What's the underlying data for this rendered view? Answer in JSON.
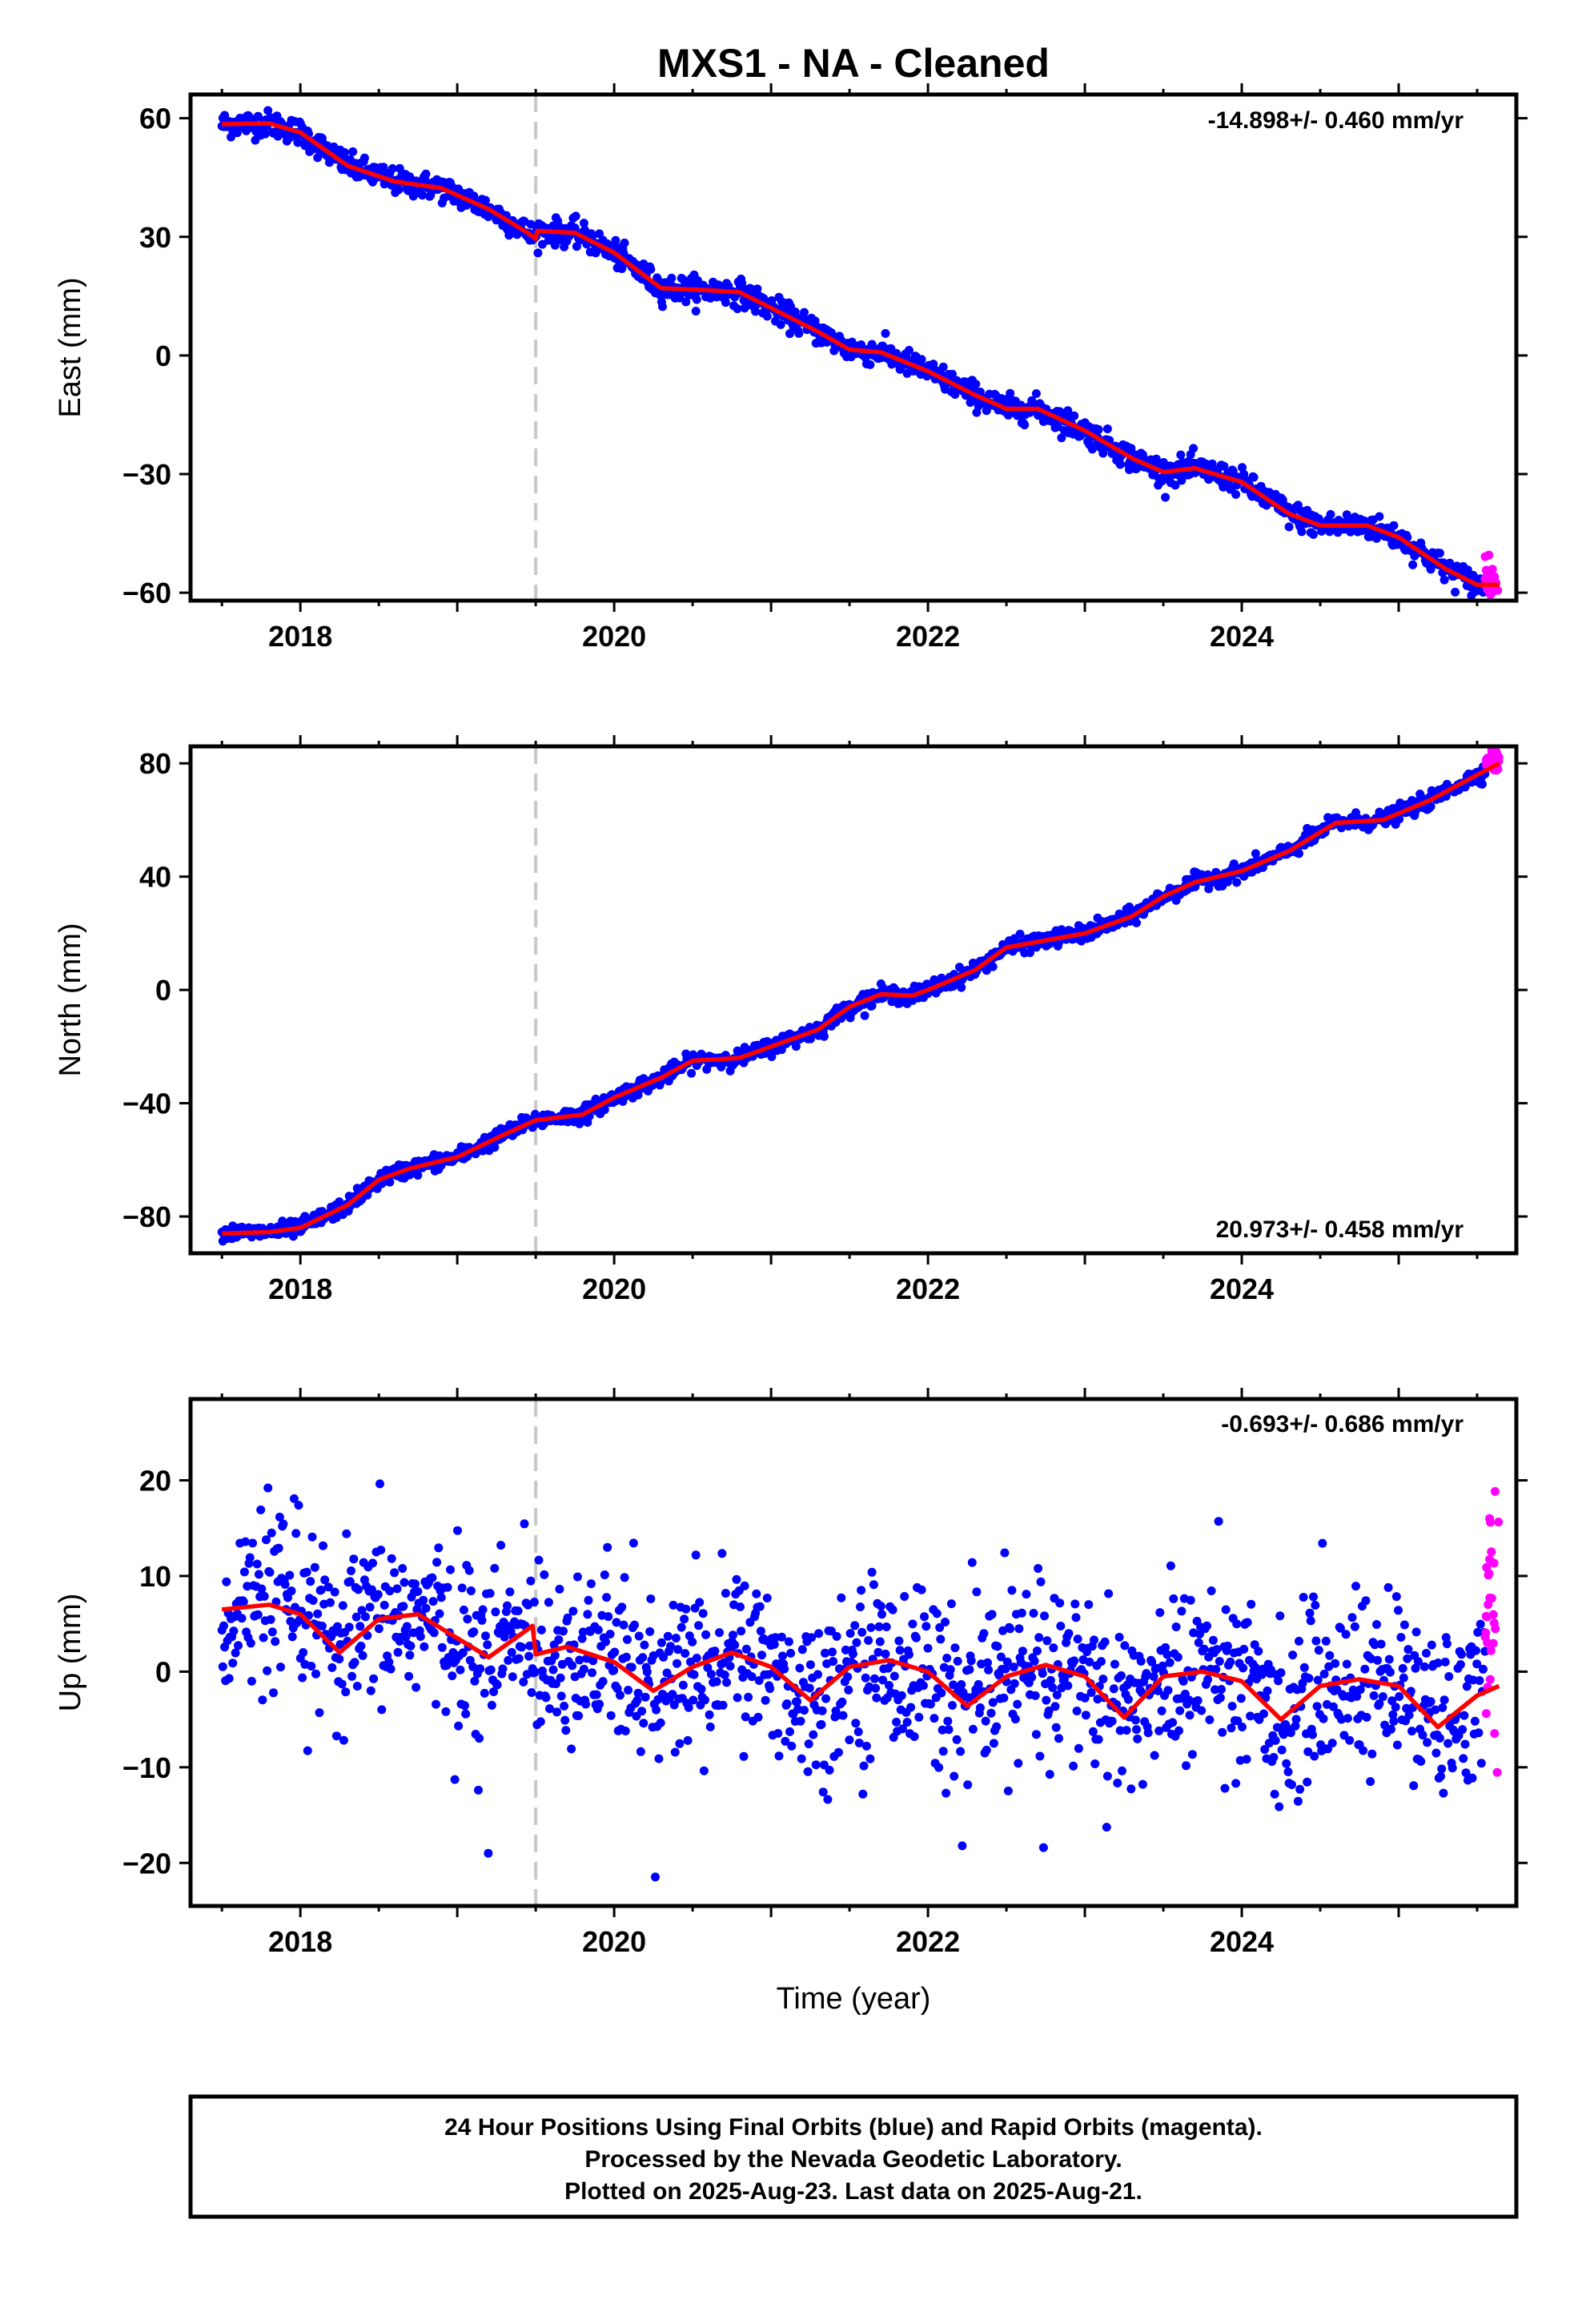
{
  "title": "MXS1  - NA - Cleaned",
  "xlabel": "Time (year)",
  "footer": {
    "line1": "24 Hour Positions Using Final Orbits (blue) and Rapid Orbits (magenta).",
    "line2": "Processed by the Nevada Geodetic Laboratory.",
    "line3": "Plotted on 2025-Aug-23. Last data on 2025-Aug-21."
  },
  "colors": {
    "final": "#0000ff",
    "rapid": "#ff00ff",
    "model": "#ff0000",
    "event_line": "#c8c8c8"
  },
  "chart_data": [
    {
      "type": "scatter",
      "component": "east",
      "ylabel": "East (mm)",
      "rate": "-14.898+/- 0.460 mm/yr",
      "xlim": [
        2017.3,
        2025.75
      ],
      "ylim": [
        -62,
        66
      ],
      "xticks": [
        2018,
        2020,
        2022,
        2024
      ],
      "yticks": [
        -60,
        -30,
        0,
        30,
        60
      ],
      "event_line_x": 2019.5,
      "data_start": 2017.5,
      "final_end": 2025.55,
      "rapid_range": [
        2025.55,
        2025.64
      ],
      "noise_mm": 1.6,
      "model": [
        [
          2017.5,
          58.5
        ],
        [
          2017.8,
          58.7
        ],
        [
          2018.0,
          56.4
        ],
        [
          2018.3,
          48
        ],
        [
          2018.6,
          44
        ],
        [
          2018.9,
          42.3
        ],
        [
          2019.2,
          37
        ],
        [
          2019.45,
          31
        ],
        [
          2019.5,
          29.5
        ],
        [
          2019.51,
          31.5
        ],
        [
          2019.75,
          31
        ],
        [
          2020.0,
          26
        ],
        [
          2020.3,
          17
        ],
        [
          2020.6,
          16.5
        ],
        [
          2020.8,
          16
        ],
        [
          2021.0,
          12
        ],
        [
          2021.3,
          6
        ],
        [
          2021.5,
          1.5
        ],
        [
          2021.7,
          0.8
        ],
        [
          2022.0,
          -4
        ],
        [
          2022.3,
          -10
        ],
        [
          2022.5,
          -13.5
        ],
        [
          2022.7,
          -13.5
        ],
        [
          2023.0,
          -19
        ],
        [
          2023.3,
          -26
        ],
        [
          2023.5,
          -29.5
        ],
        [
          2023.7,
          -28.5
        ],
        [
          2024.0,
          -32
        ],
        [
          2024.3,
          -40
        ],
        [
          2024.5,
          -43
        ],
        [
          2024.8,
          -43
        ],
        [
          2025.0,
          -46
        ],
        [
          2025.3,
          -54
        ],
        [
          2025.5,
          -58
        ],
        [
          2025.64,
          -58
        ]
      ]
    },
    {
      "type": "scatter",
      "component": "north",
      "ylabel": "North (mm)",
      "rate": "20.973+/- 0.458 mm/yr",
      "xlim": [
        2017.3,
        2025.75
      ],
      "ylim": [
        -93,
        86
      ],
      "xticks": [
        2018,
        2020,
        2022,
        2024
      ],
      "yticks": [
        -80,
        -40,
        0,
        40,
        80
      ],
      "event_line_x": 2019.5,
      "data_start": 2017.5,
      "final_end": 2025.55,
      "rapid_range": [
        2025.55,
        2025.64
      ],
      "noise_mm": 1.4,
      "model": [
        [
          2017.5,
          -86
        ],
        [
          2017.8,
          -85.5
        ],
        [
          2018.0,
          -84
        ],
        [
          2018.3,
          -76
        ],
        [
          2018.5,
          -67
        ],
        [
          2018.7,
          -63
        ],
        [
          2019.0,
          -59
        ],
        [
          2019.3,
          -51
        ],
        [
          2019.5,
          -46
        ],
        [
          2019.8,
          -44
        ],
        [
          2020.0,
          -38
        ],
        [
          2020.3,
          -31
        ],
        [
          2020.5,
          -25
        ],
        [
          2020.8,
          -24
        ],
        [
          2021.0,
          -20
        ],
        [
          2021.3,
          -14
        ],
        [
          2021.5,
          -6
        ],
        [
          2021.7,
          -1.5
        ],
        [
          2021.9,
          -2
        ],
        [
          2022.0,
          0
        ],
        [
          2022.3,
          7
        ],
        [
          2022.5,
          15
        ],
        [
          2022.8,
          18
        ],
        [
          2023.0,
          20
        ],
        [
          2023.3,
          26
        ],
        [
          2023.5,
          33
        ],
        [
          2023.7,
          38
        ],
        [
          2024.0,
          42
        ],
        [
          2024.3,
          49
        ],
        [
          2024.6,
          59
        ],
        [
          2024.9,
          60
        ],
        [
          2025.2,
          67
        ],
        [
          2025.4,
          73
        ],
        [
          2025.64,
          80
        ]
      ]
    },
    {
      "type": "scatter",
      "component": "up",
      "ylabel": "Up (mm)",
      "rate": "-0.693+/- 0.686 mm/yr",
      "xlim": [
        2017.3,
        2025.75
      ],
      "ylim": [
        -24.5,
        28.5
      ],
      "xticks": [
        2018,
        2020,
        2022,
        2024
      ],
      "yticks": [
        -20,
        -10,
        0,
        10,
        20
      ],
      "event_line_x": 2019.5,
      "data_start": 2017.5,
      "final_end": 2025.55,
      "rapid_range": [
        2025.55,
        2025.64
      ],
      "noise_mm": 4.5,
      "model": [
        [
          2017.5,
          6.5
        ],
        [
          2017.8,
          7
        ],
        [
          2018.0,
          6
        ],
        [
          2018.25,
          2
        ],
        [
          2018.5,
          5.5
        ],
        [
          2018.75,
          6
        ],
        [
          2019.0,
          3.5
        ],
        [
          2019.2,
          1.5
        ],
        [
          2019.48,
          4.8
        ],
        [
          2019.5,
          1.8
        ],
        [
          2019.7,
          2.6
        ],
        [
          2020.0,
          1
        ],
        [
          2020.25,
          -2
        ],
        [
          2020.5,
          0.5
        ],
        [
          2020.75,
          2
        ],
        [
          2021.0,
          0.5
        ],
        [
          2021.25,
          -3
        ],
        [
          2021.5,
          0.5
        ],
        [
          2021.75,
          1.2
        ],
        [
          2022.0,
          0
        ],
        [
          2022.25,
          -3.6
        ],
        [
          2022.5,
          -0.5
        ],
        [
          2022.75,
          0.7
        ],
        [
          2023.0,
          -0.5
        ],
        [
          2023.25,
          -4.8
        ],
        [
          2023.5,
          -0.5
        ],
        [
          2023.75,
          0
        ],
        [
          2024.0,
          -1
        ],
        [
          2024.25,
          -5
        ],
        [
          2024.5,
          -1.5
        ],
        [
          2024.75,
          -0.8
        ],
        [
          2025.0,
          -1.5
        ],
        [
          2025.25,
          -5.8
        ],
        [
          2025.5,
          -2.5
        ],
        [
          2025.64,
          -1.5
        ]
      ]
    }
  ]
}
